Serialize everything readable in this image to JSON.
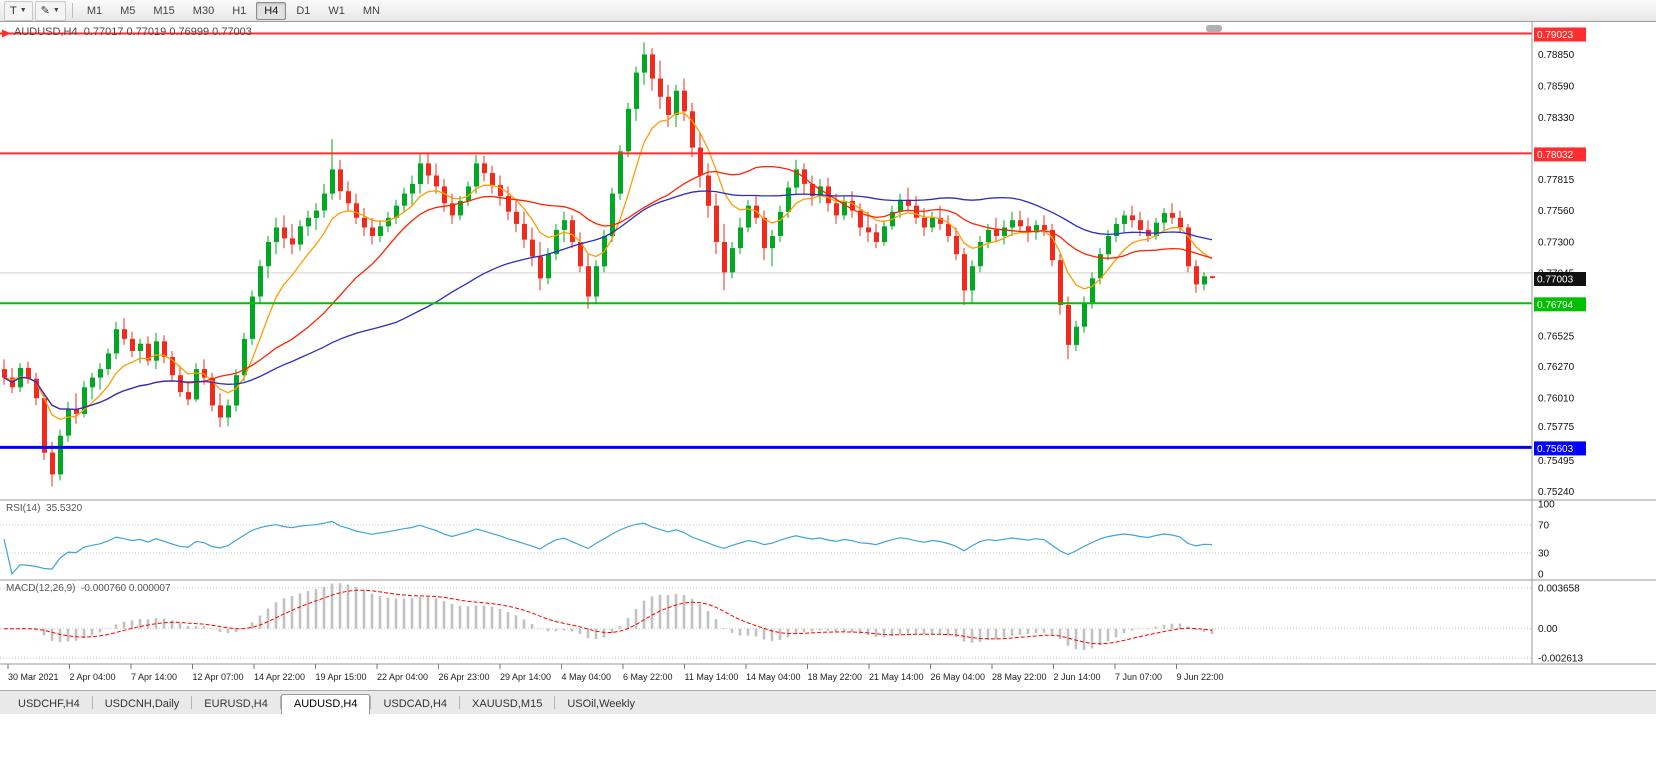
{
  "toolbar": {
    "tool_button": "T",
    "draw_button": "✎",
    "timeframes": [
      "M1",
      "M5",
      "M15",
      "M30",
      "H1",
      "H4",
      "D1",
      "W1",
      "MN"
    ],
    "active_timeframe": "H4"
  },
  "chart": {
    "title_symbol": "AUDUSD,H4",
    "title_ohlc": "0.77017 0.77019 0.76999 0.77003",
    "ylim": [
      0.75185,
      0.79085
    ],
    "price_scale_factor": 100000,
    "scale_ticks": [
      0.7885,
      0.7859,
      0.7833,
      0.77815,
      0.7756,
      0.773,
      0.77045,
      0.76525,
      0.7627,
      0.7601,
      0.75775,
      0.75495,
      0.7524
    ],
    "hlines": [
      {
        "price": 0.79023,
        "color": "#ff2d2d",
        "label": "0.79023",
        "width": 2
      },
      {
        "price": 0.78032,
        "color": "#ff2d2d",
        "label": "0.78032",
        "width": 2
      },
      {
        "price": 0.76794,
        "color": "#00c000",
        "label": "0.76794",
        "width": 2
      },
      {
        "price": 0.75603,
        "color": "#0000ff",
        "label": "0.75603",
        "width": 3
      }
    ],
    "bid_line": {
      "price": 0.77045,
      "color": "#d0d0d0"
    },
    "last_price": {
      "value": 0.77003,
      "label": "0.77003",
      "bg": "#111111"
    },
    "up_color": "#00a823",
    "down_color": "#f02b1d",
    "ma": [
      {
        "period": 8,
        "type": "ema",
        "color": "#ff9d00",
        "name": "fast-ma"
      },
      {
        "period": 21,
        "type": "sma",
        "color": "#ff2400",
        "name": "mid-ma"
      },
      {
        "period": 50,
        "type": "sma",
        "color": "#2d2dc4",
        "name": "slow-ma"
      }
    ],
    "candles": [
      [
        76250,
        76330,
        76120,
        76180
      ],
      [
        76180,
        76260,
        76050,
        76100
      ],
      [
        76100,
        76300,
        76060,
        76260
      ],
      [
        76260,
        76310,
        76130,
        76170
      ],
      [
        76170,
        76220,
        75950,
        76010
      ],
      [
        76010,
        76050,
        75500,
        75560
      ],
      [
        75560,
        75650,
        75280,
        75380
      ],
      [
        75380,
        75750,
        75330,
        75700
      ],
      [
        75700,
        75980,
        75650,
        75920
      ],
      [
        75920,
        76050,
        75800,
        75880
      ],
      [
        75880,
        76150,
        75850,
        76100
      ],
      [
        76100,
        76220,
        76000,
        76180
      ],
      [
        76180,
        76300,
        76080,
        76250
      ],
      [
        76250,
        76420,
        76200,
        76380
      ],
      [
        76380,
        76640,
        76330,
        76580
      ],
      [
        76580,
        76670,
        76450,
        76500
      ],
      [
        76500,
        76560,
        76350,
        76400
      ],
      [
        76400,
        76500,
        76300,
        76460
      ],
      [
        76460,
        76520,
        76280,
        76320
      ],
      [
        76320,
        76550,
        76250,
        76480
      ],
      [
        76480,
        76530,
        76300,
        76350
      ],
      [
        76350,
        76400,
        76150,
        76200
      ],
      [
        76200,
        76280,
        76020,
        76060
      ],
      [
        76060,
        76150,
        75950,
        76000
      ],
      [
        76000,
        76300,
        75980,
        76250
      ],
      [
        76250,
        76330,
        76120,
        76180
      ],
      [
        76180,
        76220,
        75900,
        75950
      ],
      [
        75950,
        76050,
        75770,
        75850
      ],
      [
        75850,
        76000,
        75780,
        75950
      ],
      [
        75950,
        76250,
        75900,
        76200
      ],
      [
        76200,
        76550,
        76150,
        76500
      ],
      [
        76500,
        76900,
        76450,
        76850
      ],
      [
        76850,
        77150,
        76800,
        77100
      ],
      [
        77100,
        77350,
        77000,
        77300
      ],
      [
        77300,
        77500,
        77200,
        77420
      ],
      [
        77420,
        77520,
        77250,
        77330
      ],
      [
        77330,
        77450,
        77200,
        77280
      ],
      [
        77280,
        77480,
        77230,
        77430
      ],
      [
        77430,
        77560,
        77350,
        77500
      ],
      [
        77500,
        77620,
        77400,
        77560
      ],
      [
        77560,
        77780,
        77500,
        77700
      ],
      [
        77700,
        78150,
        77650,
        77900
      ],
      [
        77900,
        77980,
        77650,
        77720
      ],
      [
        77720,
        77800,
        77550,
        77620
      ],
      [
        77620,
        77700,
        77450,
        77500
      ],
      [
        77500,
        77580,
        77350,
        77420
      ],
      [
        77420,
        77500,
        77280,
        77350
      ],
      [
        77350,
        77480,
        77300,
        77430
      ],
      [
        77430,
        77550,
        77380,
        77500
      ],
      [
        77500,
        77650,
        77450,
        77600
      ],
      [
        77600,
        77750,
        77550,
        77700
      ],
      [
        77700,
        77850,
        77600,
        77780
      ],
      [
        77780,
        78030,
        77700,
        77950
      ],
      [
        77950,
        78030,
        77780,
        77850
      ],
      [
        77850,
        77950,
        77700,
        77760
      ],
      [
        77760,
        77820,
        77550,
        77620
      ],
      [
        77620,
        77700,
        77450,
        77520
      ],
      [
        77520,
        77680,
        77480,
        77640
      ],
      [
        77640,
        77800,
        77600,
        77760
      ],
      [
        77760,
        78020,
        77700,
        77950
      ],
      [
        77950,
        78010,
        77800,
        77870
      ],
      [
        77870,
        77930,
        77700,
        77770
      ],
      [
        77770,
        77850,
        77600,
        77680
      ],
      [
        77680,
        77760,
        77480,
        77550
      ],
      [
        77550,
        77640,
        77380,
        77450
      ],
      [
        77450,
        77550,
        77250,
        77320
      ],
      [
        77320,
        77420,
        77100,
        77180
      ],
      [
        77180,
        77300,
        76900,
        77000
      ],
      [
        77000,
        77250,
        76950,
        77200
      ],
      [
        77200,
        77450,
        77150,
        77400
      ],
      [
        77400,
        77550,
        77300,
        77480
      ],
      [
        77480,
        77520,
        77250,
        77300
      ],
      [
        77300,
        77380,
        77050,
        77100
      ],
      [
        77100,
        77200,
        76750,
        76850
      ],
      [
        76850,
        77150,
        76800,
        77100
      ],
      [
        77100,
        77400,
        77050,
        77350
      ],
      [
        77350,
        77750,
        77300,
        77700
      ],
      [
        77700,
        78100,
        77650,
        78050
      ],
      [
        78050,
        78450,
        78000,
        78400
      ],
      [
        78400,
        78750,
        78300,
        78700
      ],
      [
        78700,
        78950,
        78600,
        78850
      ],
      [
        78850,
        78900,
        78550,
        78650
      ],
      [
        78650,
        78800,
        78400,
        78500
      ],
      [
        78500,
        78600,
        78250,
        78350
      ],
      [
        78350,
        78600,
        78250,
        78550
      ],
      [
        78550,
        78650,
        78300,
        78380
      ],
      [
        78380,
        78450,
        78000,
        78080
      ],
      [
        78080,
        78200,
        77750,
        77850
      ],
      [
        77850,
        77950,
        77500,
        77600
      ],
      [
        77600,
        77700,
        77200,
        77300
      ],
      [
        77300,
        77450,
        76900,
        77050
      ],
      [
        77050,
        77300,
        77000,
        77250
      ],
      [
        77250,
        77500,
        77200,
        77420
      ],
      [
        77420,
        77650,
        77380,
        77600
      ],
      [
        77600,
        77680,
        77450,
        77500
      ],
      [
        77500,
        77560,
        77150,
        77250
      ],
      [
        77250,
        77400,
        77100,
        77350
      ],
      [
        77350,
        77600,
        77300,
        77550
      ],
      [
        77550,
        77800,
        77500,
        77750
      ],
      [
        77750,
        77980,
        77700,
        77900
      ],
      [
        77900,
        77950,
        77700,
        77780
      ],
      [
        77780,
        77850,
        77600,
        77680
      ],
      [
        77680,
        77820,
        77620,
        77760
      ],
      [
        77760,
        77830,
        77550,
        77620
      ],
      [
        77620,
        77700,
        77450,
        77520
      ],
      [
        77520,
        77680,
        77480,
        77640
      ],
      [
        77640,
        77720,
        77500,
        77560
      ],
      [
        77560,
        77620,
        77350,
        77420
      ],
      [
        77420,
        77550,
        77300,
        77380
      ],
      [
        77380,
        77450,
        77250,
        77300
      ],
      [
        77300,
        77480,
        77270,
        77430
      ],
      [
        77430,
        77600,
        77400,
        77550
      ],
      [
        77550,
        77700,
        77500,
        77650
      ],
      [
        77650,
        77750,
        77550,
        77600
      ],
      [
        77600,
        77680,
        77450,
        77500
      ],
      [
        77500,
        77580,
        77350,
        77420
      ],
      [
        77420,
        77550,
        77380,
        77500
      ],
      [
        77500,
        77600,
        77400,
        77450
      ],
      [
        77450,
        77520,
        77300,
        77350
      ],
      [
        77350,
        77420,
        77150,
        77200
      ],
      [
        77200,
        77250,
        76780,
        76900
      ],
      [
        76900,
        77150,
        76800,
        77100
      ],
      [
        77100,
        77350,
        77050,
        77300
      ],
      [
        77300,
        77450,
        77250,
        77400
      ],
      [
        77400,
        77500,
        77300,
        77350
      ],
      [
        77350,
        77480,
        77280,
        77420
      ],
      [
        77420,
        77550,
        77350,
        77480
      ],
      [
        77480,
        77560,
        77380,
        77430
      ],
      [
        77430,
        77500,
        77300,
        77380
      ],
      [
        77380,
        77480,
        77320,
        77440
      ],
      [
        77440,
        77520,
        77350,
        77400
      ],
      [
        77400,
        77450,
        77100,
        77150
      ],
      [
        77150,
        77200,
        76700,
        76780
      ],
      [
        76780,
        76850,
        76330,
        76450
      ],
      [
        76450,
        76650,
        76400,
        76600
      ],
      [
        76600,
        76850,
        76550,
        76800
      ],
      [
        76800,
        77050,
        76750,
        77000
      ],
      [
        77000,
        77250,
        76950,
        77200
      ],
      [
        77200,
        77400,
        77150,
        77350
      ],
      [
        77350,
        77500,
        77300,
        77450
      ],
      [
        77450,
        77560,
        77380,
        77520
      ],
      [
        77520,
        77600,
        77420,
        77480
      ],
      [
        77480,
        77550,
        77350,
        77400
      ],
      [
        77400,
        77480,
        77300,
        77350
      ],
      [
        77350,
        77500,
        77320,
        77460
      ],
      [
        77460,
        77580,
        77400,
        77540
      ],
      [
        77540,
        77620,
        77450,
        77500
      ],
      [
        77500,
        77560,
        77380,
        77420
      ],
      [
        77420,
        77450,
        77050,
        77100
      ],
      [
        77100,
        77150,
        76880,
        76950
      ],
      [
        76950,
        77050,
        76900,
        77017
      ],
      [
        77017,
        77019,
        76999,
        77003
      ]
    ]
  },
  "rsi": {
    "label": "RSI(14)",
    "value": "35.5320",
    "period": 14,
    "color": "#3fa4dc",
    "levels": [
      100,
      70,
      30,
      0
    ]
  },
  "macd": {
    "label": "MACD(12,26,9)",
    "values": "-0.000760 0.000007",
    "fast": 12,
    "slow": 26,
    "signal": 9,
    "hist_color": "#c2c2c2",
    "signal_color": "#ff0000",
    "scale": [
      "0.003658",
      "0.00",
      "-0.002613"
    ]
  },
  "timeline": {
    "labels": [
      "30 Mar 2021",
      "2 Apr 04:00",
      "7 Apr 14:00",
      "12 Apr 07:00",
      "14 Apr 22:00",
      "19 Apr 15:00",
      "22 Apr 04:00",
      "26 Apr 23:00",
      "29 Apr 14:00",
      "4 May 04:00",
      "6 May 22:00",
      "11 May 14:00",
      "14 May 04:00",
      "18 May 22:00",
      "21 May 14:00",
      "26 May 04:00",
      "28 May 22:00",
      "2 Jun 14:00",
      "7 Jun 07:00",
      "9 Jun 22:00"
    ]
  },
  "tabs": {
    "items": [
      "USDCHF,H4",
      "USDCNH,Daily",
      "EURUSD,H4",
      "AUDUSD,H4",
      "USDCAD,H4",
      "XAUUSD,M15",
      "USOil,Weekly"
    ],
    "active": "AUDUSD,H4"
  }
}
